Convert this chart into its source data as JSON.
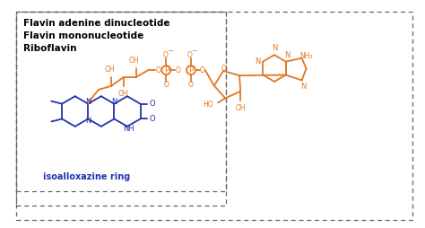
{
  "label_FAD": "Flavin adenine dinucleotide",
  "label_FMN": "Flavin mononucleotide",
  "label_RF": "Riboflavin",
  "label_iso": "isoalloxazine ring",
  "orange": "#E07820",
  "blue": "#2233AA",
  "box_color": "#666666",
  "bg": "#ffffff",
  "fig_w": 4.74,
  "fig_h": 2.54,
  "dpi": 100
}
